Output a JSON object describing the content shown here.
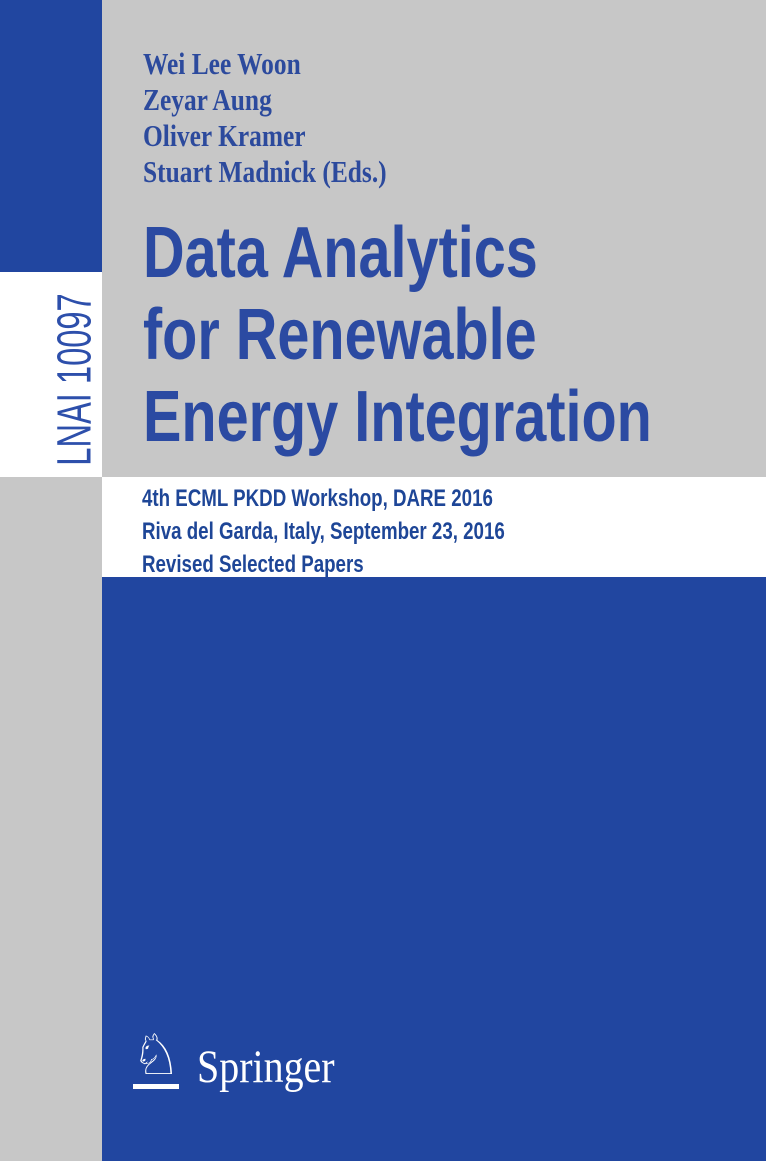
{
  "cover": {
    "series": {
      "spine_label": "LNAI 10097"
    },
    "editors": [
      "Wei Lee Woon",
      "Zeyar Aung",
      "Oliver Kramer",
      "Stuart Madnick (Eds.)"
    ],
    "title": {
      "lines": [
        "Data Analytics",
        "for Renewable",
        "Energy Integration"
      ]
    },
    "subtitle": {
      "lines": [
        "4th ECML PKDD Workshop, DARE 2016",
        "Riva del Garda, Italy, September 23, 2016",
        "Revised Selected Papers"
      ]
    },
    "publisher": {
      "name": "Springer",
      "logo_icon": "springer-horse-knight-icon"
    },
    "colors": {
      "background_blue": "#2146A0",
      "background_gray": "#C7C7C7",
      "panel_white": "#FFFFFF",
      "text_blue": "#2B4AA2",
      "subtitle_blue": "#1E4697",
      "logo_white": "#FFFFFF"
    }
  }
}
